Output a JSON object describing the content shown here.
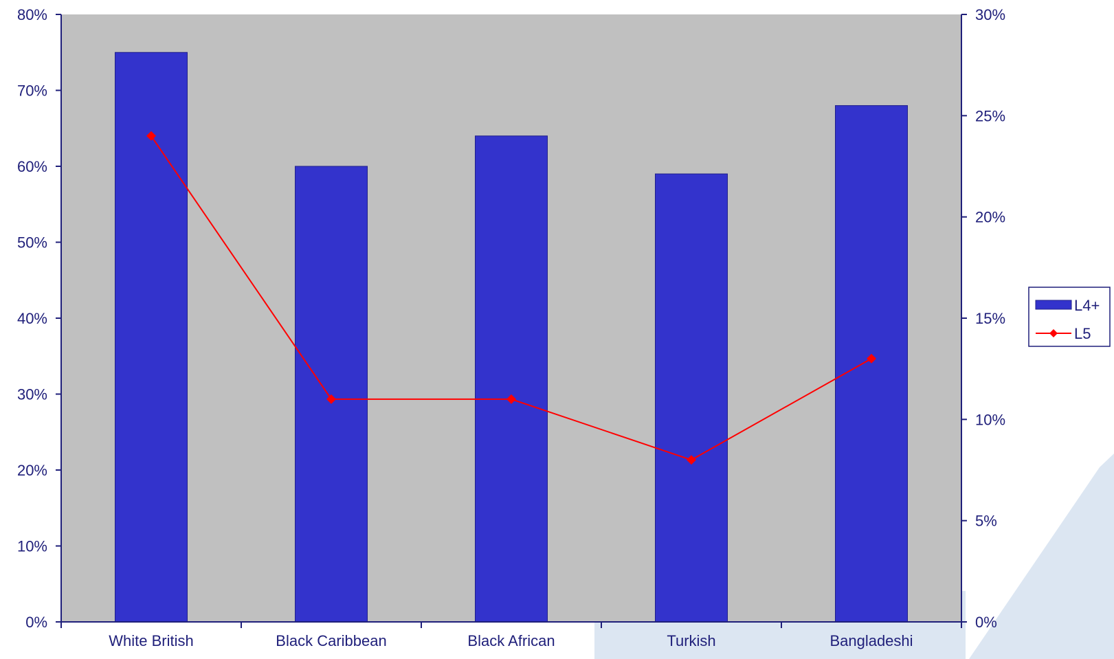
{
  "colors": {
    "bar": "#3333CC",
    "line": "#FF0000",
    "plot_bg": "#C0C0C0",
    "axis": "#1F1F7A",
    "text": "#1F1F7A",
    "decor": "#DCE6F2"
  },
  "chart_data": {
    "type": "bar",
    "categories": [
      "White British",
      "Black Caribbean",
      "Black African",
      "Turkish",
      "Bangladeshi"
    ],
    "series": [
      {
        "name": "L4+",
        "type": "bar",
        "axis": "left",
        "values": [
          75,
          60,
          64,
          59,
          68
        ]
      },
      {
        "name": "L5",
        "type": "line",
        "axis": "right",
        "values": [
          24,
          11,
          11,
          8,
          13
        ]
      }
    ],
    "y_left": {
      "ylim": [
        0,
        80
      ],
      "ticks": [
        0,
        10,
        20,
        30,
        40,
        50,
        60,
        70,
        80
      ],
      "tick_labels": [
        "0%",
        "10%",
        "20%",
        "30%",
        "40%",
        "50%",
        "60%",
        "70%",
        "80%"
      ]
    },
    "y_right": {
      "ylim": [
        0,
        30
      ],
      "ticks": [
        0,
        5,
        10,
        15,
        20,
        25,
        30
      ],
      "tick_labels": [
        "0%",
        "5%",
        "10%",
        "15%",
        "20%",
        "25%",
        "30%"
      ]
    },
    "grid": false,
    "legend": {
      "placement": "right",
      "entries": [
        {
          "label": "L4+",
          "marker": "bar"
        },
        {
          "label": "L5",
          "marker": "line-diamond"
        }
      ]
    },
    "title": "",
    "xlabel": "",
    "ylabel": ""
  }
}
